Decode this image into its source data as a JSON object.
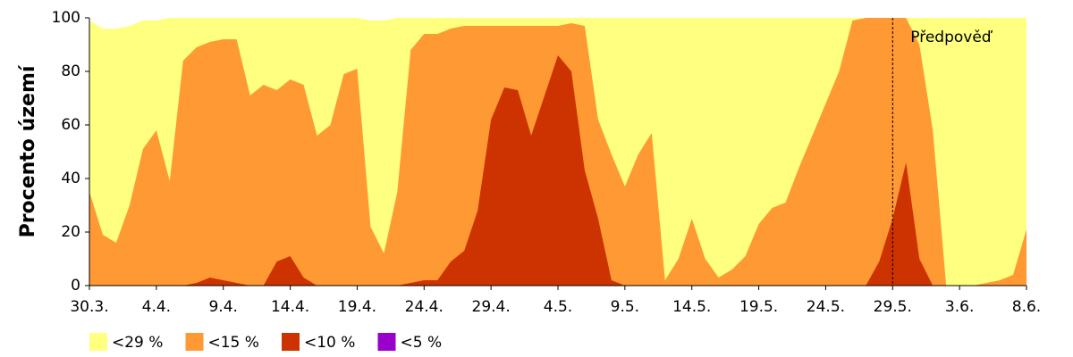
{
  "chart_data": {
    "type": "area",
    "y_label": "Procento území",
    "categories": [
      "30.3.",
      null,
      null,
      null,
      null,
      "4.4.",
      null,
      null,
      null,
      null,
      "9.4.",
      null,
      null,
      null,
      null,
      "14.4.",
      null,
      null,
      null,
      null,
      "19.4.",
      null,
      null,
      null,
      null,
      "24.4.",
      null,
      null,
      null,
      null,
      "29.4.",
      null,
      null,
      null,
      null,
      "4.5.",
      null,
      null,
      null,
      null,
      "9.5.",
      null,
      null,
      null,
      null,
      "14.5.",
      null,
      null,
      null,
      null,
      "19.5.",
      null,
      null,
      null,
      null,
      "24.5.",
      null,
      null,
      null,
      null,
      "29.5.",
      null,
      null,
      null,
      null,
      "3.6.",
      null,
      null,
      null,
      null,
      "8.6."
    ],
    "series": [
      {
        "name": "<29 %",
        "color": "#ffff80",
        "values": [
          99,
          96,
          96,
          97,
          99,
          99,
          100,
          100,
          100,
          100,
          100,
          100,
          100,
          100,
          100,
          100,
          100,
          100,
          100,
          100,
          100,
          99,
          99,
          100,
          100,
          100,
          100,
          100,
          100,
          100,
          100,
          100,
          100,
          100,
          100,
          100,
          100,
          100,
          100,
          100,
          100,
          100,
          100,
          100,
          100,
          100,
          100,
          100,
          100,
          100,
          100,
          100,
          100,
          100,
          100,
          100,
          100,
          100,
          100,
          100,
          100,
          100,
          100,
          100,
          100,
          100,
          100,
          100,
          100,
          100,
          100
        ]
      },
      {
        "name": "<15 %",
        "color": "#ff9933",
        "values": [
          35,
          19,
          16,
          30,
          51,
          58,
          39,
          84,
          89,
          91,
          92,
          92,
          71,
          75,
          73,
          77,
          75,
          56,
          60,
          79,
          81,
          22,
          12,
          35,
          88,
          94,
          94,
          96,
          97,
          97,
          97,
          97,
          97,
          97,
          97,
          97,
          98,
          97,
          62,
          49,
          37,
          49,
          57,
          2,
          10,
          25,
          10,
          3,
          6,
          11,
          23,
          29,
          31,
          44,
          56,
          68,
          80,
          99,
          100,
          100,
          100,
          100,
          90,
          58,
          0,
          0,
          0,
          1,
          2,
          4,
          21
        ]
      },
      {
        "name": "<10 %",
        "color": "#cc3300",
        "values": [
          0,
          0,
          0,
          0,
          0,
          0,
          0,
          0,
          1,
          3,
          2,
          1,
          0,
          0,
          9,
          11,
          3,
          0,
          0,
          0,
          0,
          0,
          0,
          0,
          1,
          2,
          2,
          9,
          13,
          28,
          62,
          74,
          73,
          56,
          71,
          86,
          80,
          43,
          25,
          2,
          0,
          0,
          0,
          0,
          0,
          0,
          0,
          0,
          0,
          0,
          0,
          0,
          0,
          0,
          0,
          0,
          0,
          0,
          0,
          9,
          25,
          46,
          10,
          0,
          0,
          0,
          0,
          0,
          0,
          0,
          0
        ]
      },
      {
        "name": "<5 %",
        "color": "#9900cc",
        "values": [
          0,
          0,
          0,
          0,
          0,
          0,
          0,
          0,
          0,
          0,
          0,
          0,
          0,
          0,
          0,
          0,
          0,
          0,
          0,
          0,
          0,
          0,
          0,
          0,
          0,
          0,
          0,
          0,
          0,
          0,
          0,
          0,
          0,
          0,
          0,
          0,
          0,
          0,
          0,
          0,
          0,
          0,
          0,
          0,
          0,
          0,
          0,
          0,
          0,
          0,
          0,
          0,
          0,
          0,
          0,
          0,
          0,
          0,
          0,
          0,
          0,
          0,
          0,
          0,
          0,
          0,
          0,
          0,
          0,
          0,
          0
        ]
      }
    ],
    "ylim": [
      0,
      100
    ],
    "yticks": [
      0,
      20,
      40,
      60,
      80,
      100
    ],
    "annotation": {
      "label": "Předpověď",
      "at": "29.5."
    }
  }
}
